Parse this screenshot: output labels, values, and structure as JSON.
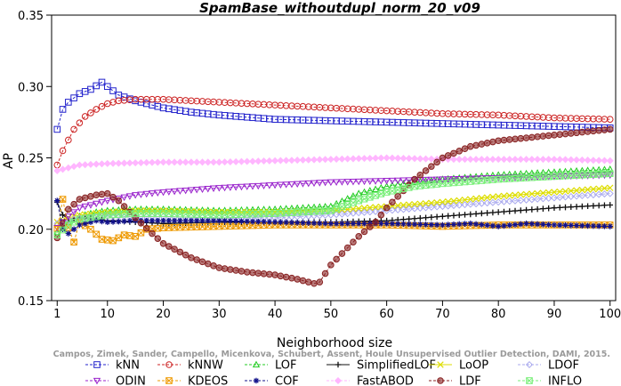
{
  "chart_data": {
    "type": "line",
    "title": "SpamBase_withoutdupl_norm_20_v09",
    "xlabel": "Neighborhood size",
    "ylabel": "AP",
    "xlim": [
      0,
      101
    ],
    "ylim": [
      0.15,
      0.35
    ],
    "xticks": [
      1,
      10,
      20,
      30,
      40,
      50,
      60,
      70,
      80,
      90,
      100
    ],
    "xtick_labels": [
      "1",
      "10",
      "20",
      "30",
      "40",
      "50",
      "60",
      "70",
      "80",
      "90",
      "100"
    ],
    "yticks": [
      0.15,
      0.2,
      0.25,
      0.3,
      0.35
    ],
    "ytick_labels": [
      "0.15",
      "0.20",
      "0.25",
      "0.30",
      "0.35"
    ],
    "credit": "Campos, Zimek, Sander, Campello, Micenkova, Schubert, Assent, Houle Unsupervised Outlier Detection, DAMI, 2015.",
    "legend_position": "bottom",
    "series": [
      {
        "name": "kNN",
        "color": "#2222cc",
        "marker": "square",
        "dash": true,
        "x": [
          1,
          2,
          3,
          5,
          7,
          9,
          10,
          12,
          15,
          18,
          20,
          25,
          30,
          40,
          50,
          60,
          70,
          80,
          90,
          100
        ],
        "y": [
          0.27,
          0.284,
          0.289,
          0.295,
          0.298,
          0.303,
          0.3,
          0.294,
          0.29,
          0.287,
          0.285,
          0.282,
          0.28,
          0.277,
          0.276,
          0.275,
          0.274,
          0.273,
          0.272,
          0.271
        ]
      },
      {
        "name": "kNNW",
        "color": "#cc2222",
        "marker": "circle",
        "dash": true,
        "x": [
          1,
          2,
          4,
          6,
          8,
          10,
          12,
          15,
          20,
          30,
          40,
          50,
          60,
          70,
          80,
          90,
          100
        ],
        "y": [
          0.245,
          0.255,
          0.27,
          0.279,
          0.284,
          0.288,
          0.29,
          0.291,
          0.291,
          0.289,
          0.287,
          0.285,
          0.283,
          0.281,
          0.28,
          0.278,
          0.277
        ]
      },
      {
        "name": "LOF",
        "color": "#22cc22",
        "marker": "triangle",
        "dash": true,
        "x": [
          1,
          3,
          5,
          8,
          10,
          15,
          20,
          30,
          40,
          50,
          55,
          60,
          65,
          70,
          80,
          90,
          100
        ],
        "y": [
          0.198,
          0.205,
          0.209,
          0.212,
          0.213,
          0.214,
          0.214,
          0.213,
          0.214,
          0.216,
          0.225,
          0.23,
          0.233,
          0.235,
          0.238,
          0.24,
          0.242
        ]
      },
      {
        "name": "SimplifiedLOF",
        "color": "#111111",
        "marker": "plus",
        "dash": false,
        "x": [
          1,
          2,
          3,
          5,
          8,
          10,
          15,
          20,
          30,
          40,
          50,
          60,
          70,
          80,
          90,
          100
        ],
        "y": [
          0.219,
          0.21,
          0.207,
          0.208,
          0.207,
          0.206,
          0.205,
          0.204,
          0.205,
          0.205,
          0.205,
          0.206,
          0.209,
          0.212,
          0.215,
          0.217
        ]
      },
      {
        "name": "LoOP",
        "color": "#dddd00",
        "marker": "cross",
        "dash": false,
        "x": [
          1,
          3,
          5,
          10,
          15,
          20,
          30,
          40,
          50,
          60,
          70,
          80,
          90,
          100
        ],
        "y": [
          0.205,
          0.208,
          0.21,
          0.212,
          0.213,
          0.213,
          0.212,
          0.212,
          0.213,
          0.216,
          0.219,
          0.223,
          0.226,
          0.229
        ]
      },
      {
        "name": "LDOF",
        "color": "#aaaaee",
        "marker": "diamond",
        "dash": true,
        "x": [
          1,
          3,
          5,
          10,
          15,
          20,
          30,
          40,
          50,
          60,
          70,
          80,
          90,
          100
        ],
        "y": [
          0.204,
          0.206,
          0.208,
          0.209,
          0.209,
          0.209,
          0.208,
          0.208,
          0.21,
          0.213,
          0.216,
          0.219,
          0.222,
          0.225
        ]
      },
      {
        "name": "ODIN",
        "color": "#9922cc",
        "marker": "triangle-down",
        "dash": true,
        "x": [
          1,
          3,
          5,
          10,
          15,
          20,
          30,
          40,
          50,
          60,
          70,
          80,
          90,
          100
        ],
        "y": [
          0.201,
          0.209,
          0.215,
          0.22,
          0.224,
          0.226,
          0.229,
          0.231,
          0.233,
          0.234,
          0.235,
          0.236,
          0.237,
          0.238
        ]
      },
      {
        "name": "KDEOS",
        "color": "#ee9900",
        "marker": "square-x",
        "dash": true,
        "x": [
          1,
          2,
          3,
          4,
          5,
          7,
          9,
          11,
          13,
          15,
          17,
          20,
          30,
          40,
          50,
          60,
          70,
          80,
          90,
          100
        ],
        "y": [
          0.2,
          0.221,
          0.201,
          0.191,
          0.205,
          0.2,
          0.193,
          0.192,
          0.196,
          0.195,
          0.2,
          0.201,
          0.202,
          0.203,
          0.203,
          0.203,
          0.202,
          0.203,
          0.203,
          0.203
        ]
      },
      {
        "name": "COF",
        "color": "#11118a",
        "marker": "asterisk",
        "dash": true,
        "x": [
          1,
          2,
          3,
          5,
          8,
          10,
          15,
          20,
          30,
          40,
          50,
          60,
          70,
          75,
          80,
          85,
          90,
          100
        ],
        "y": [
          0.22,
          0.2,
          0.197,
          0.203,
          0.206,
          0.205,
          0.206,
          0.206,
          0.206,
          0.205,
          0.204,
          0.204,
          0.203,
          0.204,
          0.202,
          0.204,
          0.203,
          0.202
        ]
      },
      {
        "name": "FastABOD",
        "color": "#ffb6ff",
        "marker": "diamond-filled",
        "dash": true,
        "x": [
          1,
          3,
          5,
          10,
          20,
          30,
          40,
          50,
          60,
          70,
          80,
          90,
          100
        ],
        "y": [
          0.241,
          0.243,
          0.245,
          0.246,
          0.247,
          0.247,
          0.248,
          0.249,
          0.25,
          0.249,
          0.249,
          0.249,
          0.248
        ]
      },
      {
        "name": "LDF",
        "color": "#882222",
        "marker": "circle-filled",
        "dash": true,
        "x": [
          1,
          3,
          5,
          8,
          10,
          12,
          15,
          18,
          20,
          25,
          30,
          35,
          40,
          44,
          47,
          48,
          50,
          53,
          55,
          58,
          60,
          65,
          70,
          75,
          80,
          85,
          90,
          95,
          100
        ],
        "y": [
          0.194,
          0.214,
          0.221,
          0.224,
          0.225,
          0.22,
          0.208,
          0.197,
          0.19,
          0.18,
          0.173,
          0.17,
          0.168,
          0.165,
          0.162,
          0.163,
          0.175,
          0.187,
          0.195,
          0.205,
          0.215,
          0.235,
          0.25,
          0.258,
          0.262,
          0.264,
          0.266,
          0.268,
          0.27
        ]
      },
      {
        "name": "INFLO",
        "color": "#77ee77",
        "marker": "square-x",
        "dash": true,
        "x": [
          1,
          3,
          5,
          10,
          15,
          20,
          30,
          40,
          50,
          55,
          60,
          65,
          70,
          80,
          90,
          100
        ],
        "y": [
          0.196,
          0.203,
          0.207,
          0.21,
          0.211,
          0.211,
          0.21,
          0.211,
          0.213,
          0.22,
          0.226,
          0.23,
          0.232,
          0.235,
          0.237,
          0.239
        ]
      }
    ]
  }
}
